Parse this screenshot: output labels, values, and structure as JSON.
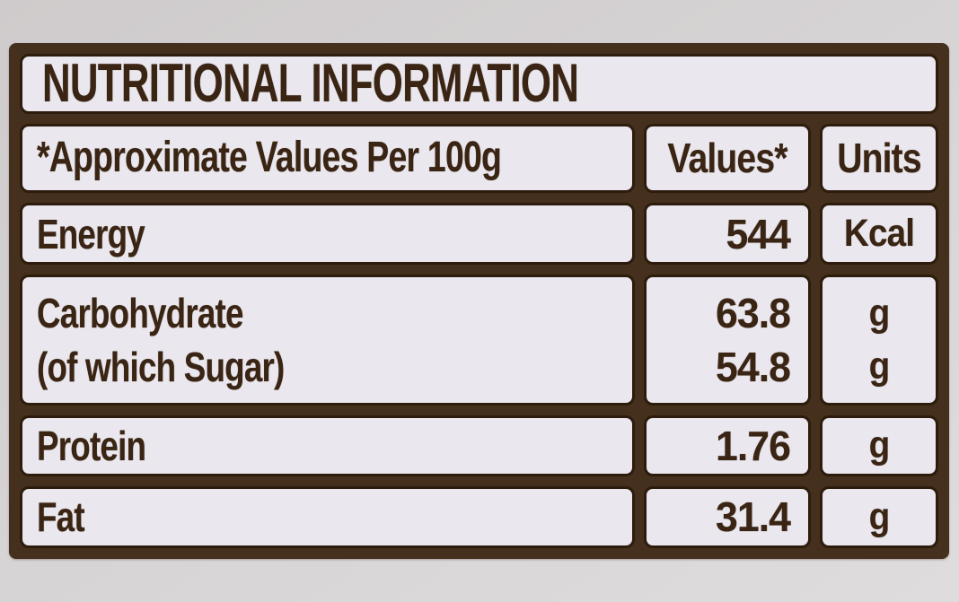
{
  "title": "NUTRITIONAL INFORMATION",
  "table": {
    "header": {
      "label": "*Approximate Values Per 100g",
      "values": "Values*",
      "units": "Units"
    },
    "rows": [
      {
        "label": "Energy",
        "value": "544",
        "unit": "Kcal"
      },
      {
        "label": "Carbohydrate",
        "label2": "(of which Sugar)",
        "value": "63.8",
        "value2": "54.8",
        "unit": "g",
        "unit2": "g"
      },
      {
        "label": "Protein",
        "value": "1.76",
        "unit": "g"
      },
      {
        "label": "Fat",
        "value": "31.4",
        "unit": "g"
      }
    ]
  },
  "colors": {
    "ink_brown": "#3a2413",
    "grid_brown": "#44301c",
    "cell_background": "#eae8ee",
    "photo_background": "#d6d3d4"
  }
}
